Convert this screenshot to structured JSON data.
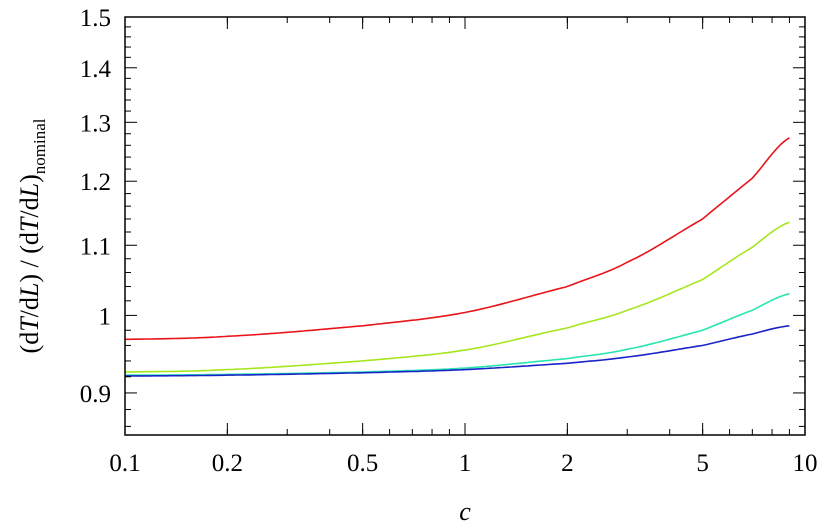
{
  "chart_data": {
    "type": "line",
    "xscale": "log",
    "yscale": "log",
    "xlim": [
      0.1,
      9
    ],
    "ylim": [
      0.85,
      1.5
    ],
    "grid": false,
    "legend": "none",
    "xlabel": "c",
    "ylabel": {
      "p1": "(d",
      "T1": "T",
      "p2": "/d",
      "L1": "L",
      "p3": ") / (d",
      "T2": "T",
      "p4": "/d",
      "L2": "L",
      "p5": ")",
      "sub": "nominal"
    },
    "xticks": [
      {
        "value": 0.1,
        "label": "0.1"
      },
      {
        "value": 0.2,
        "label": "0.2"
      },
      {
        "value": 0.5,
        "label": "0.5"
      },
      {
        "value": 1,
        "label": "1"
      },
      {
        "value": 2,
        "label": "2"
      },
      {
        "value": 5,
        "label": "5"
      },
      {
        "value": 10,
        "label": "10"
      }
    ],
    "yticks": [
      {
        "value": 0.9,
        "label": "0.9"
      },
      {
        "value": 1.0,
        "label": "1"
      },
      {
        "value": 1.1,
        "label": "1.1"
      },
      {
        "value": 1.2,
        "label": "1.2"
      },
      {
        "value": 1.3,
        "label": "1.3"
      },
      {
        "value": 1.4,
        "label": "1.4"
      },
      {
        "value": 1.5,
        "label": "1.5"
      }
    ],
    "series": [
      {
        "color": "#e8141a",
        "x": [
          0.1,
          0.2,
          0.5,
          1,
          2,
          3,
          5,
          7,
          9
        ],
        "y": [
          0.968,
          0.972,
          0.986,
          1.004,
          1.04,
          1.075,
          1.14,
          1.205,
          1.273
        ]
      },
      {
        "color": "#a6e61e",
        "x": [
          0.1,
          0.2,
          0.5,
          1,
          2,
          3,
          5,
          7,
          9
        ],
        "y": [
          0.926,
          0.929,
          0.94,
          0.954,
          0.983,
          1.007,
          1.05,
          1.097,
          1.135
        ]
      },
      {
        "color": "#28e6b0",
        "x": [
          0.1,
          0.2,
          0.5,
          1,
          2,
          3,
          5,
          7,
          9
        ],
        "y": [
          0.922,
          0.923,
          0.926,
          0.931,
          0.943,
          0.955,
          0.98,
          1.007,
          1.03
        ]
      },
      {
        "color": "#1a23c8",
        "x": [
          0.1,
          0.2,
          0.5,
          1,
          2,
          3,
          5,
          7,
          9
        ],
        "y": [
          0.921,
          0.922,
          0.925,
          0.929,
          0.937,
          0.945,
          0.96,
          0.975,
          0.986
        ]
      }
    ]
  }
}
